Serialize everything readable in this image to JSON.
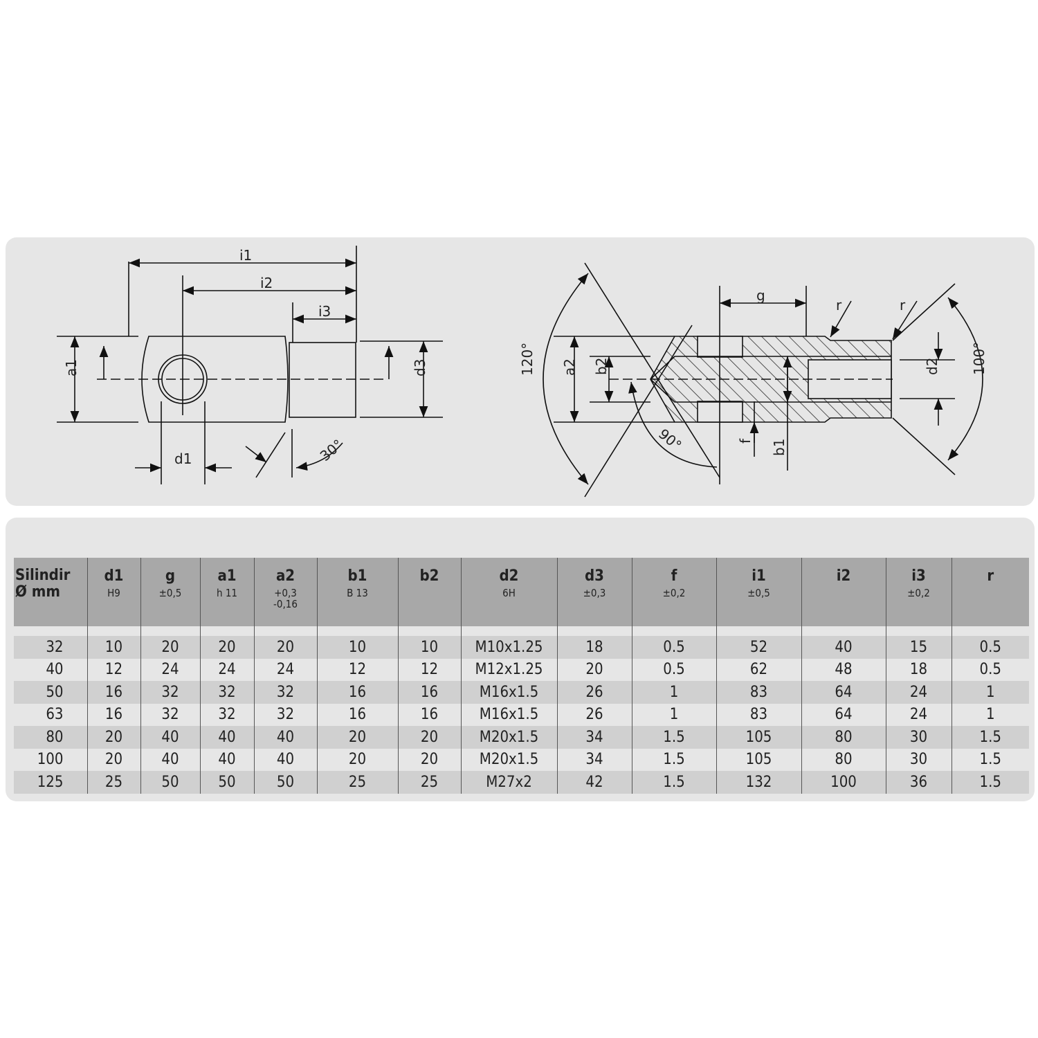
{
  "drawing": {
    "left_labels": {
      "i1": "i1",
      "i2": "i2",
      "i3": "i3",
      "a1": "a1",
      "d3": "d3",
      "d1": "d1",
      "angle30": "30°"
    },
    "right_labels": {
      "g": "g",
      "r1": "r",
      "r2": "r",
      "a2": "a2",
      "b2": "b2",
      "d2": "d2",
      "angle120": "120°",
      "angle100": "100°",
      "angle90": "90°",
      "f": "f",
      "b1": "b1"
    }
  },
  "table": {
    "headers": [
      {
        "name": "Silindir",
        "sub": "Ø mm"
      },
      {
        "name": "d1",
        "sub": "H9"
      },
      {
        "name": "g",
        "sub": "±0,5"
      },
      {
        "name": "a1",
        "sub": "h 11"
      },
      {
        "name": "a2",
        "sub": "+0,3",
        "sub2": "-0,16"
      },
      {
        "name": "b1",
        "sub": "B 13"
      },
      {
        "name": "b2",
        "sub": ""
      },
      {
        "name": "d2",
        "sub": "6H"
      },
      {
        "name": "d3",
        "sub": "±0,3"
      },
      {
        "name": "f",
        "sub": "±0,2"
      },
      {
        "name": "i1",
        "sub": "±0,5"
      },
      {
        "name": "i2",
        "sub": ""
      },
      {
        "name": "i3",
        "sub": "±0,2"
      },
      {
        "name": "r",
        "sub": ""
      }
    ],
    "rows": [
      [
        "32",
        "10",
        "20",
        "20",
        "20",
        "10",
        "10",
        "M10x1.25",
        "18",
        "0.5",
        "52",
        "40",
        "15",
        "0.5"
      ],
      [
        "40",
        "12",
        "24",
        "24",
        "24",
        "12",
        "12",
        "M12x1.25",
        "20",
        "0.5",
        "62",
        "48",
        "18",
        "0.5"
      ],
      [
        "50",
        "16",
        "32",
        "32",
        "32",
        "16",
        "16",
        "M16x1.5",
        "26",
        "1",
        "83",
        "64",
        "24",
        "1"
      ],
      [
        "63",
        "16",
        "32",
        "32",
        "32",
        "16",
        "16",
        "M16x1.5",
        "26",
        "1",
        "83",
        "64",
        "24",
        "1"
      ],
      [
        "80",
        "20",
        "40",
        "40",
        "40",
        "20",
        "20",
        "M20x1.5",
        "34",
        "1.5",
        "105",
        "80",
        "30",
        "1.5"
      ],
      [
        "100",
        "20",
        "40",
        "40",
        "40",
        "20",
        "20",
        "M20x1.5",
        "34",
        "1.5",
        "105",
        "80",
        "30",
        "1.5"
      ],
      [
        "125",
        "25",
        "50",
        "50",
        "50",
        "25",
        "25",
        "M27x2",
        "42",
        "1.5",
        "132",
        "100",
        "36",
        "1.5"
      ]
    ]
  }
}
